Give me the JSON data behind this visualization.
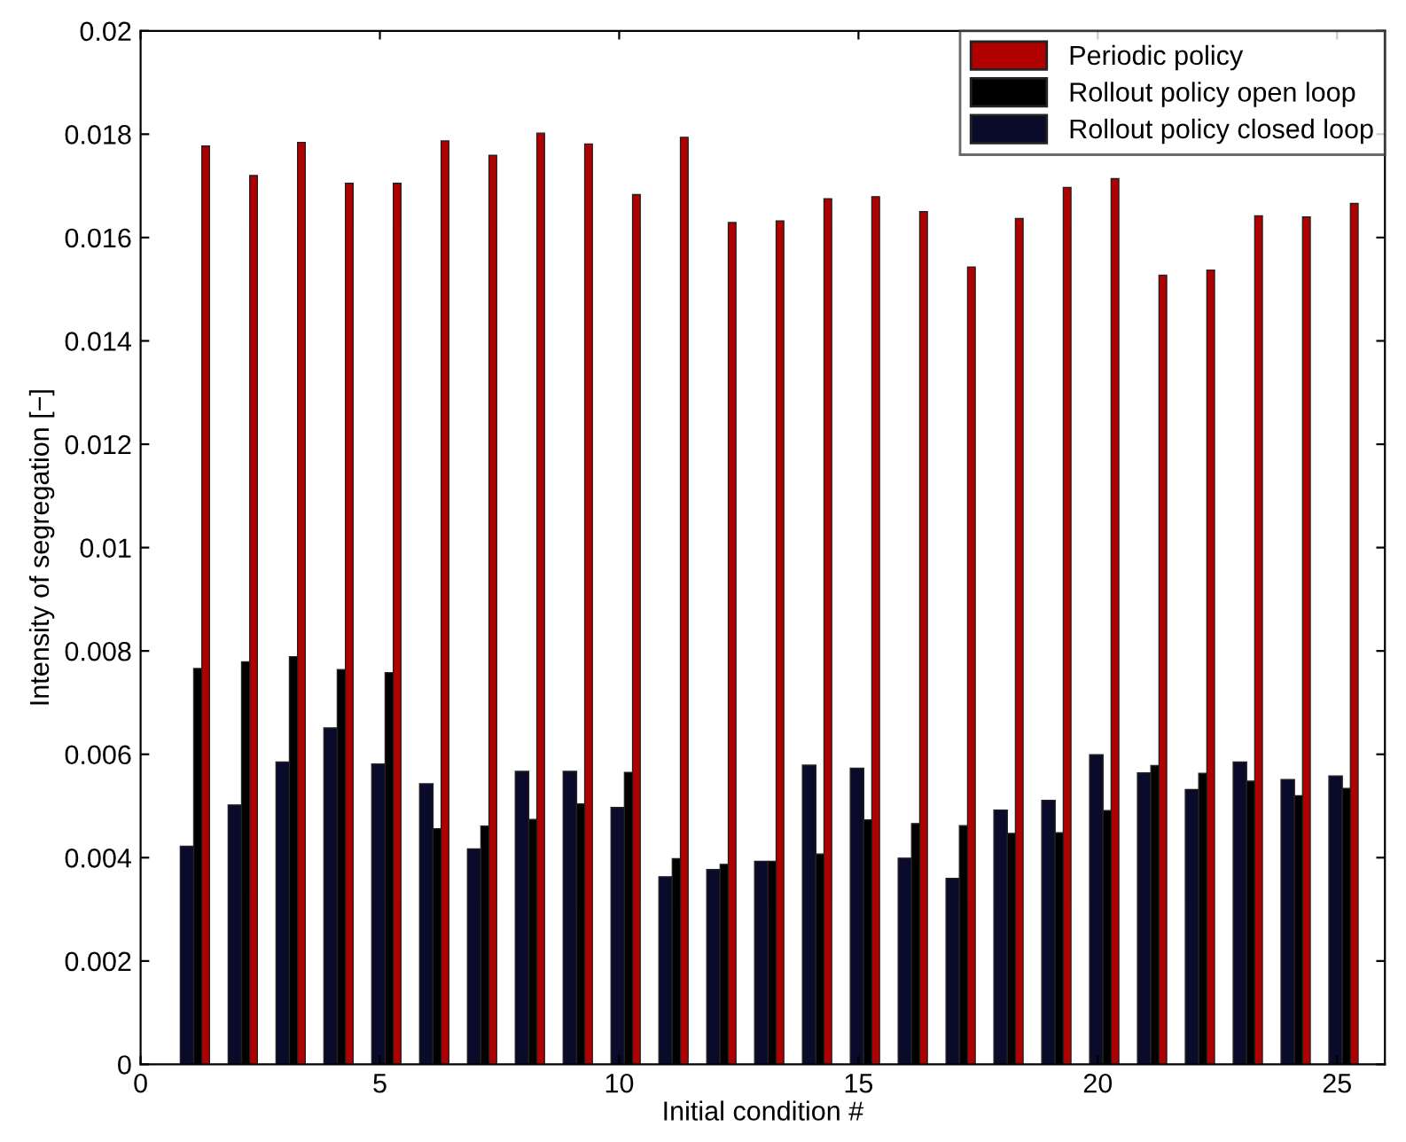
{
  "chart_data": {
    "type": "bar",
    "xlabel": "Initial condition #",
    "ylabel": "Intensity of segregation [−]",
    "x": [
      1,
      2,
      3,
      4,
      5,
      6,
      7,
      8,
      9,
      10,
      11,
      12,
      13,
      14,
      15,
      16,
      17,
      18,
      19,
      20,
      21,
      22,
      23,
      24,
      25
    ],
    "series": [
      {
        "name": "Periodic policy",
        "color": "#b00000",
        "values": [
          0.01777,
          0.0172,
          0.01784,
          0.01705,
          0.01705,
          0.01787,
          0.01759,
          0.01802,
          0.01781,
          0.01683,
          0.01794,
          0.01629,
          0.01632,
          0.01675,
          0.01679,
          0.0165,
          0.01543,
          0.01637,
          0.01697,
          0.01714,
          0.01527,
          0.01537,
          0.01642,
          0.0164,
          0.01666
        ]
      },
      {
        "name": "Rollout policy open loop",
        "color": "#000000",
        "values": [
          0.00766,
          0.00779,
          0.00789,
          0.00764,
          0.00758,
          0.00456,
          0.00461,
          0.00474,
          0.00504,
          0.00565,
          0.00398,
          0.00387,
          0.00393,
          0.00407,
          0.00473,
          0.00466,
          0.00462,
          0.00447,
          0.00448,
          0.00491,
          0.00578,
          0.00563,
          0.00548,
          0.0052,
          0.00534
        ]
      },
      {
        "name": "Rollout policy closed loop",
        "color": "#0a0a2a",
        "values": [
          0.00422,
          0.00502,
          0.00585,
          0.00651,
          0.00581,
          0.00543,
          0.00417,
          0.00567,
          0.00567,
          0.00497,
          0.00363,
          0.00377,
          0.00393,
          0.00579,
          0.00573,
          0.00399,
          0.0036,
          0.00492,
          0.00511,
          0.00599,
          0.00564,
          0.00532,
          0.00585,
          0.00551,
          0.00558
        ]
      }
    ],
    "xlim": [
      0,
      26
    ],
    "xticks": [
      0,
      5,
      10,
      15,
      20,
      25
    ],
    "ylim": [
      0,
      0.02
    ],
    "yticks": [
      0,
      0.002,
      0.004,
      0.006,
      0.008,
      0.01,
      0.012,
      0.014,
      0.016,
      0.018,
      0.02
    ],
    "grid": false,
    "legend": "top right"
  }
}
